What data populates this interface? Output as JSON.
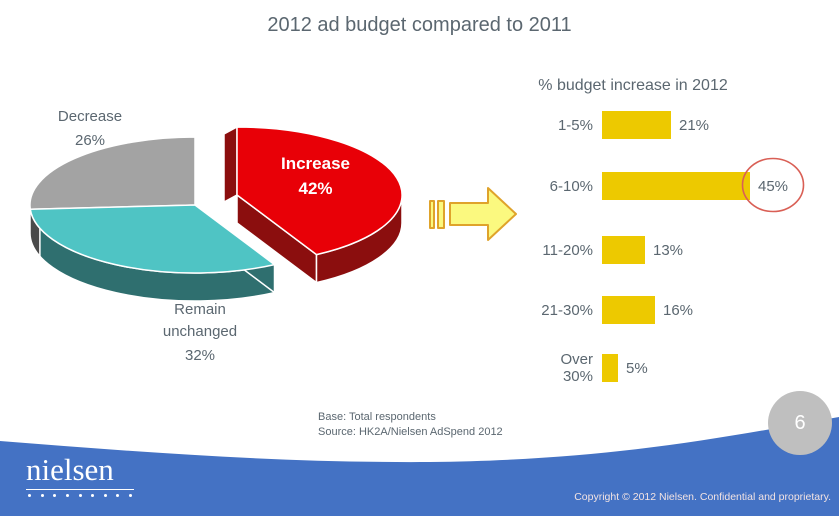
{
  "slide": {
    "title": "2012 ad budget compared to 2011",
    "page_number": "6",
    "base_note": "Base: Total respondents",
    "source_note": "Source: HK2A/Nielsen AdSpend 2012",
    "copyright": "Copyright © 2012 Nielsen. Confidential and proprietary.",
    "logo_text": "nielsen"
  },
  "colors": {
    "text_gray": "#5B6770",
    "bar_yellow": "#EDC900",
    "footer_blue": "#4472C4",
    "arrow_fill": "#FBF97F",
    "arrow_stroke": "#DFA32B",
    "highlight_red": "#D95F55",
    "badge_gray": "#BFBFBF"
  },
  "chart_data": [
    {
      "type": "pie",
      "style": "3d-exploded",
      "title": "2012 ad budget compared to 2011",
      "slices": [
        {
          "label": "Increase",
          "value": 42,
          "display": "42%",
          "top_color": "#E80007",
          "side_color": "#8B0E0E",
          "exploded": true
        },
        {
          "label": "Remain unchanged",
          "value": 32,
          "display": "32%",
          "top_color": "#4FC4C4",
          "side_color": "#2F6F6F",
          "exploded": false
        },
        {
          "label": "Decrease",
          "value": 26,
          "display": "26%",
          "top_color": "#A3A3A3",
          "side_color": "#4A4A4A",
          "exploded": false
        }
      ]
    },
    {
      "type": "bar",
      "orientation": "horizontal",
      "title": "% budget increase in 2012",
      "categories": [
        "1-5%",
        "6-10%",
        "11-20%",
        "21-30%",
        "Over 30%"
      ],
      "values": [
        21,
        45,
        13,
        16,
        5
      ],
      "value_labels": [
        "21%",
        "45%",
        "13%",
        "16%",
        "5%"
      ],
      "xlim": [
        0,
        50
      ],
      "highlight": {
        "category": "6-10%",
        "value_label": "45%",
        "marker": "red-circle"
      }
    }
  ]
}
